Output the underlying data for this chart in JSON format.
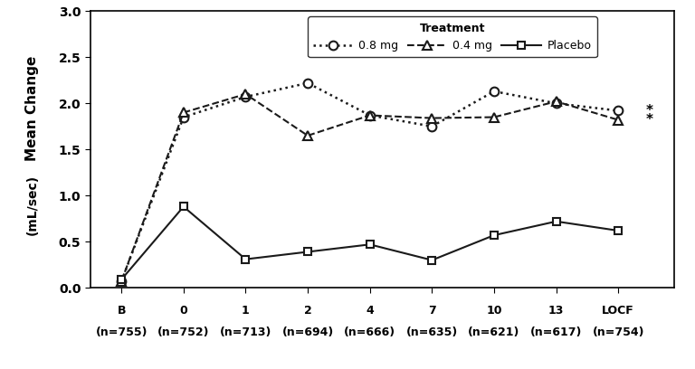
{
  "x_positions": [
    0,
    1,
    2,
    3,
    4,
    5,
    6,
    7,
    8
  ],
  "x_labels_line1": [
    "B",
    "0",
    "1",
    "2",
    "4",
    "7",
    "10",
    "13",
    "LOCF"
  ],
  "x_labels_line2": [
    "(n=755)",
    "(n=752)",
    "(n=713)",
    "(n=694)",
    "(n=666)",
    "(n=635)",
    "(n=621)",
    "(n=617)",
    "(n=754)"
  ],
  "series_08mg": [
    0.07,
    1.85,
    2.07,
    2.22,
    1.87,
    1.75,
    2.13,
    2.0,
    1.92
  ],
  "series_04mg": [
    0.07,
    1.9,
    2.1,
    1.65,
    1.87,
    1.84,
    1.85,
    2.02,
    1.82
  ],
  "series_placebo": [
    0.09,
    0.88,
    0.31,
    0.39,
    0.47,
    0.3,
    0.57,
    0.72,
    0.62
  ],
  "ylim": [
    0.0,
    3.0
  ],
  "yticks": [
    0.0,
    0.5,
    1.0,
    1.5,
    2.0,
    2.5,
    3.0
  ],
  "ylabel_top": "Mean Change",
  "ylabel_bottom": "(mL/sec)",
  "legend_title": "Treatment",
  "color": "#1a1a1a",
  "background": "#ffffff",
  "asterisk_y_08": 1.92,
  "asterisk_y_04": 1.82,
  "asterisk_x": 8.45,
  "xlim_left": -0.5,
  "xlim_right": 8.9
}
